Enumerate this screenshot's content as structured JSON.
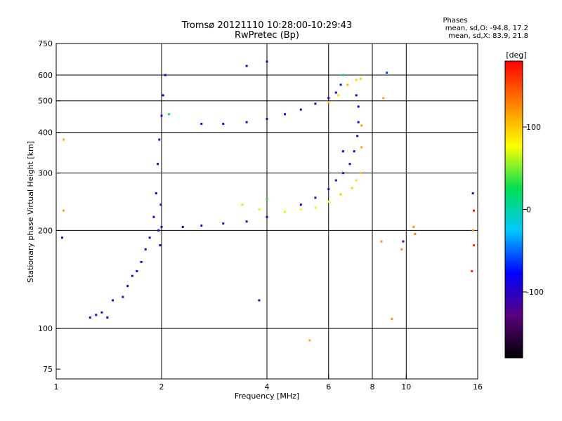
{
  "header": {
    "title": "Tromsø 20121110 10:28:00-10:29:43",
    "subtitle": "RwPretec (Bp)"
  },
  "stats": {
    "heading": "Phases",
    "line_o": "mean, sd,O: -94.8, 17.2",
    "line_x": "mean, sd,X:  83.9, 21.8"
  },
  "colorbar": {
    "unit": "[deg]",
    "ticks": [
      "100",
      "0",
      "-100"
    ],
    "tick_values": [
      100,
      0,
      -100
    ],
    "range": [
      -180,
      180
    ],
    "scale": [
      "#000000",
      "#5a0080",
      "#0000ff",
      "#00c8ff",
      "#00e050",
      "#ffff00",
      "#ff8000",
      "#ff0000"
    ]
  },
  "chart_data": {
    "type": "scatter",
    "title": "Tromsø 20121110 10:28:00-10:29:43",
    "subtitle": "RwPretec (Bp)",
    "xlabel": "Frequency [MHz]",
    "ylabel": "Stationary phase Virtual Height [km]",
    "xscale": "log",
    "yscale": "log",
    "xlim": [
      1,
      16
    ],
    "ylim": [
      70,
      750
    ],
    "xticks": [
      1,
      2,
      4,
      6,
      8,
      10,
      16
    ],
    "xtick_labels": [
      "1",
      "2",
      "4",
      "6",
      "8",
      "10",
      "16"
    ],
    "yticks": [
      75,
      100,
      200,
      300,
      400,
      500,
      600,
      750
    ],
    "ytick_labels": [
      "75",
      "100",
      "200",
      "300",
      "400",
      "500",
      "600",
      "750"
    ],
    "grid": true,
    "series": [
      {
        "x": [
          1.25,
          1.3,
          1.35,
          1.4,
          1.45,
          1.55,
          1.6,
          1.65,
          1.7,
          1.75,
          1.8,
          1.85,
          1.9,
          1.93,
          1.95,
          1.97,
          2.0,
          2.02,
          2.05,
          1.98,
          1.96,
          1.99
        ],
        "y": [
          108,
          110,
          112,
          108,
          122,
          125,
          135,
          145,
          150,
          160,
          175,
          190,
          220,
          260,
          320,
          380,
          450,
          520,
          600,
          180,
          200,
          240
        ],
        "phase": [
          -105,
          -100,
          -110,
          -95,
          -100,
          -102,
          -98,
          -97,
          -96,
          -100,
          -101,
          -99,
          -98,
          -95,
          -97,
          -96,
          -94,
          -100,
          -90,
          -98,
          -96,
          -100
        ]
      },
      {
        "x": [
          2.0,
          2.3,
          2.6,
          3.0,
          3.5,
          4.0,
          4.5,
          5.0,
          5.5,
          6.0,
          6.3,
          6.6,
          6.9,
          7.1,
          7.25,
          7.3,
          7.3,
          7.2
        ],
        "y": [
          205,
          205,
          207,
          210,
          213,
          220,
          228,
          240,
          252,
          268,
          285,
          300,
          320,
          350,
          390,
          430,
          480,
          520
        ],
        "phase": [
          -95,
          -98,
          -97,
          -120,
          -96,
          -100,
          -95,
          -90,
          -100,
          -105,
          -110,
          -105,
          -100,
          -98,
          -102,
          -100,
          -95,
          -95
        ]
      },
      {
        "x": [
          2.6,
          3.0,
          3.5,
          4.0,
          4.5,
          5.0,
          5.5,
          6.0,
          6.3,
          6.5,
          6.6
        ],
        "y": [
          425,
          425,
          430,
          440,
          455,
          470,
          490,
          510,
          530,
          560,
          600
        ],
        "phase": [
          -100,
          -100,
          -98,
          -100,
          -96,
          -97,
          -95,
          -98,
          -95,
          -70,
          -10
        ]
      },
      {
        "x": [
          3.4,
          3.8,
          4.5,
          5.0,
          5.5,
          6.0,
          6.5,
          7.0,
          7.2,
          7.4,
          7.45,
          7.45
        ],
        "y": [
          240,
          232,
          228,
          232,
          235,
          245,
          258,
          270,
          285,
          300,
          360,
          420
        ],
        "phase": [
          90,
          85,
          70,
          80,
          85,
          75,
          100,
          95,
          90,
          100,
          110,
          115
        ]
      },
      {
        "x": [
          6.0,
          6.4,
          6.8,
          7.2,
          7.4
        ],
        "y": [
          495,
          520,
          560,
          580,
          585
        ],
        "phase": [
          100,
          90,
          105,
          95,
          100
        ]
      },
      {
        "x": [
          1.05,
          1.05,
          1.04,
          3.5,
          4.0,
          4.0,
          3.8,
          5.3,
          6.6,
          8.6,
          8.8,
          8.5,
          9.1,
          9.7,
          9.8,
          10.5,
          10.6,
          15.5,
          15.6,
          15.5,
          15.6,
          15.4,
          2.1
        ],
        "y": [
          380,
          230,
          190,
          640,
          660,
          250,
          122,
          92,
          350,
          510,
          610,
          185,
          107,
          175,
          185,
          205,
          195,
          260,
          230,
          200,
          180,
          150,
          455
        ],
        "phase": [
          110,
          115,
          -100,
          -100,
          -100,
          30,
          -100,
          110,
          -100,
          110,
          -60,
          120,
          120,
          120,
          -130,
          120,
          130,
          -100,
          170,
          120,
          160,
          170,
          20
        ]
      }
    ]
  }
}
